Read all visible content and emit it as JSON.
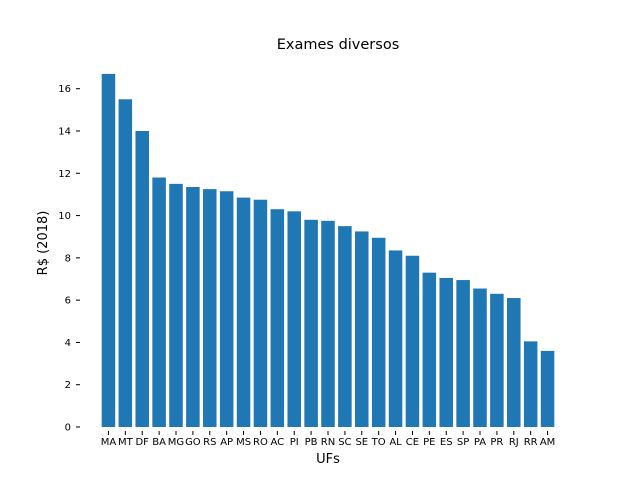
{
  "chart_data": {
    "type": "bar",
    "title": "Exames diversos",
    "xlabel": "UFs",
    "ylabel": "R$ (2018)",
    "ylim": [
      0,
      17.5
    ],
    "yticks": [
      0,
      2,
      4,
      6,
      8,
      10,
      12,
      14,
      16
    ],
    "categories": [
      "MA",
      "MT",
      "DF",
      "BA",
      "MG",
      "GO",
      "RS",
      "AP",
      "MS",
      "RO",
      "AC",
      "PI",
      "PB",
      "RN",
      "SC",
      "SE",
      "TO",
      "AL",
      "CE",
      "PE",
      "ES",
      "SP",
      "PA",
      "PR",
      "RJ",
      "RR",
      "AM"
    ],
    "values": [
      16.7,
      15.5,
      14.0,
      11.8,
      11.5,
      11.35,
      11.25,
      11.15,
      10.85,
      10.75,
      10.3,
      10.2,
      9.8,
      9.75,
      9.5,
      9.25,
      8.95,
      8.35,
      8.1,
      7.3,
      7.05,
      6.95,
      6.55,
      6.3,
      6.1,
      4.05,
      3.6
    ],
    "series_color": "#1f77b4",
    "grid": false,
    "legend": "none"
  }
}
